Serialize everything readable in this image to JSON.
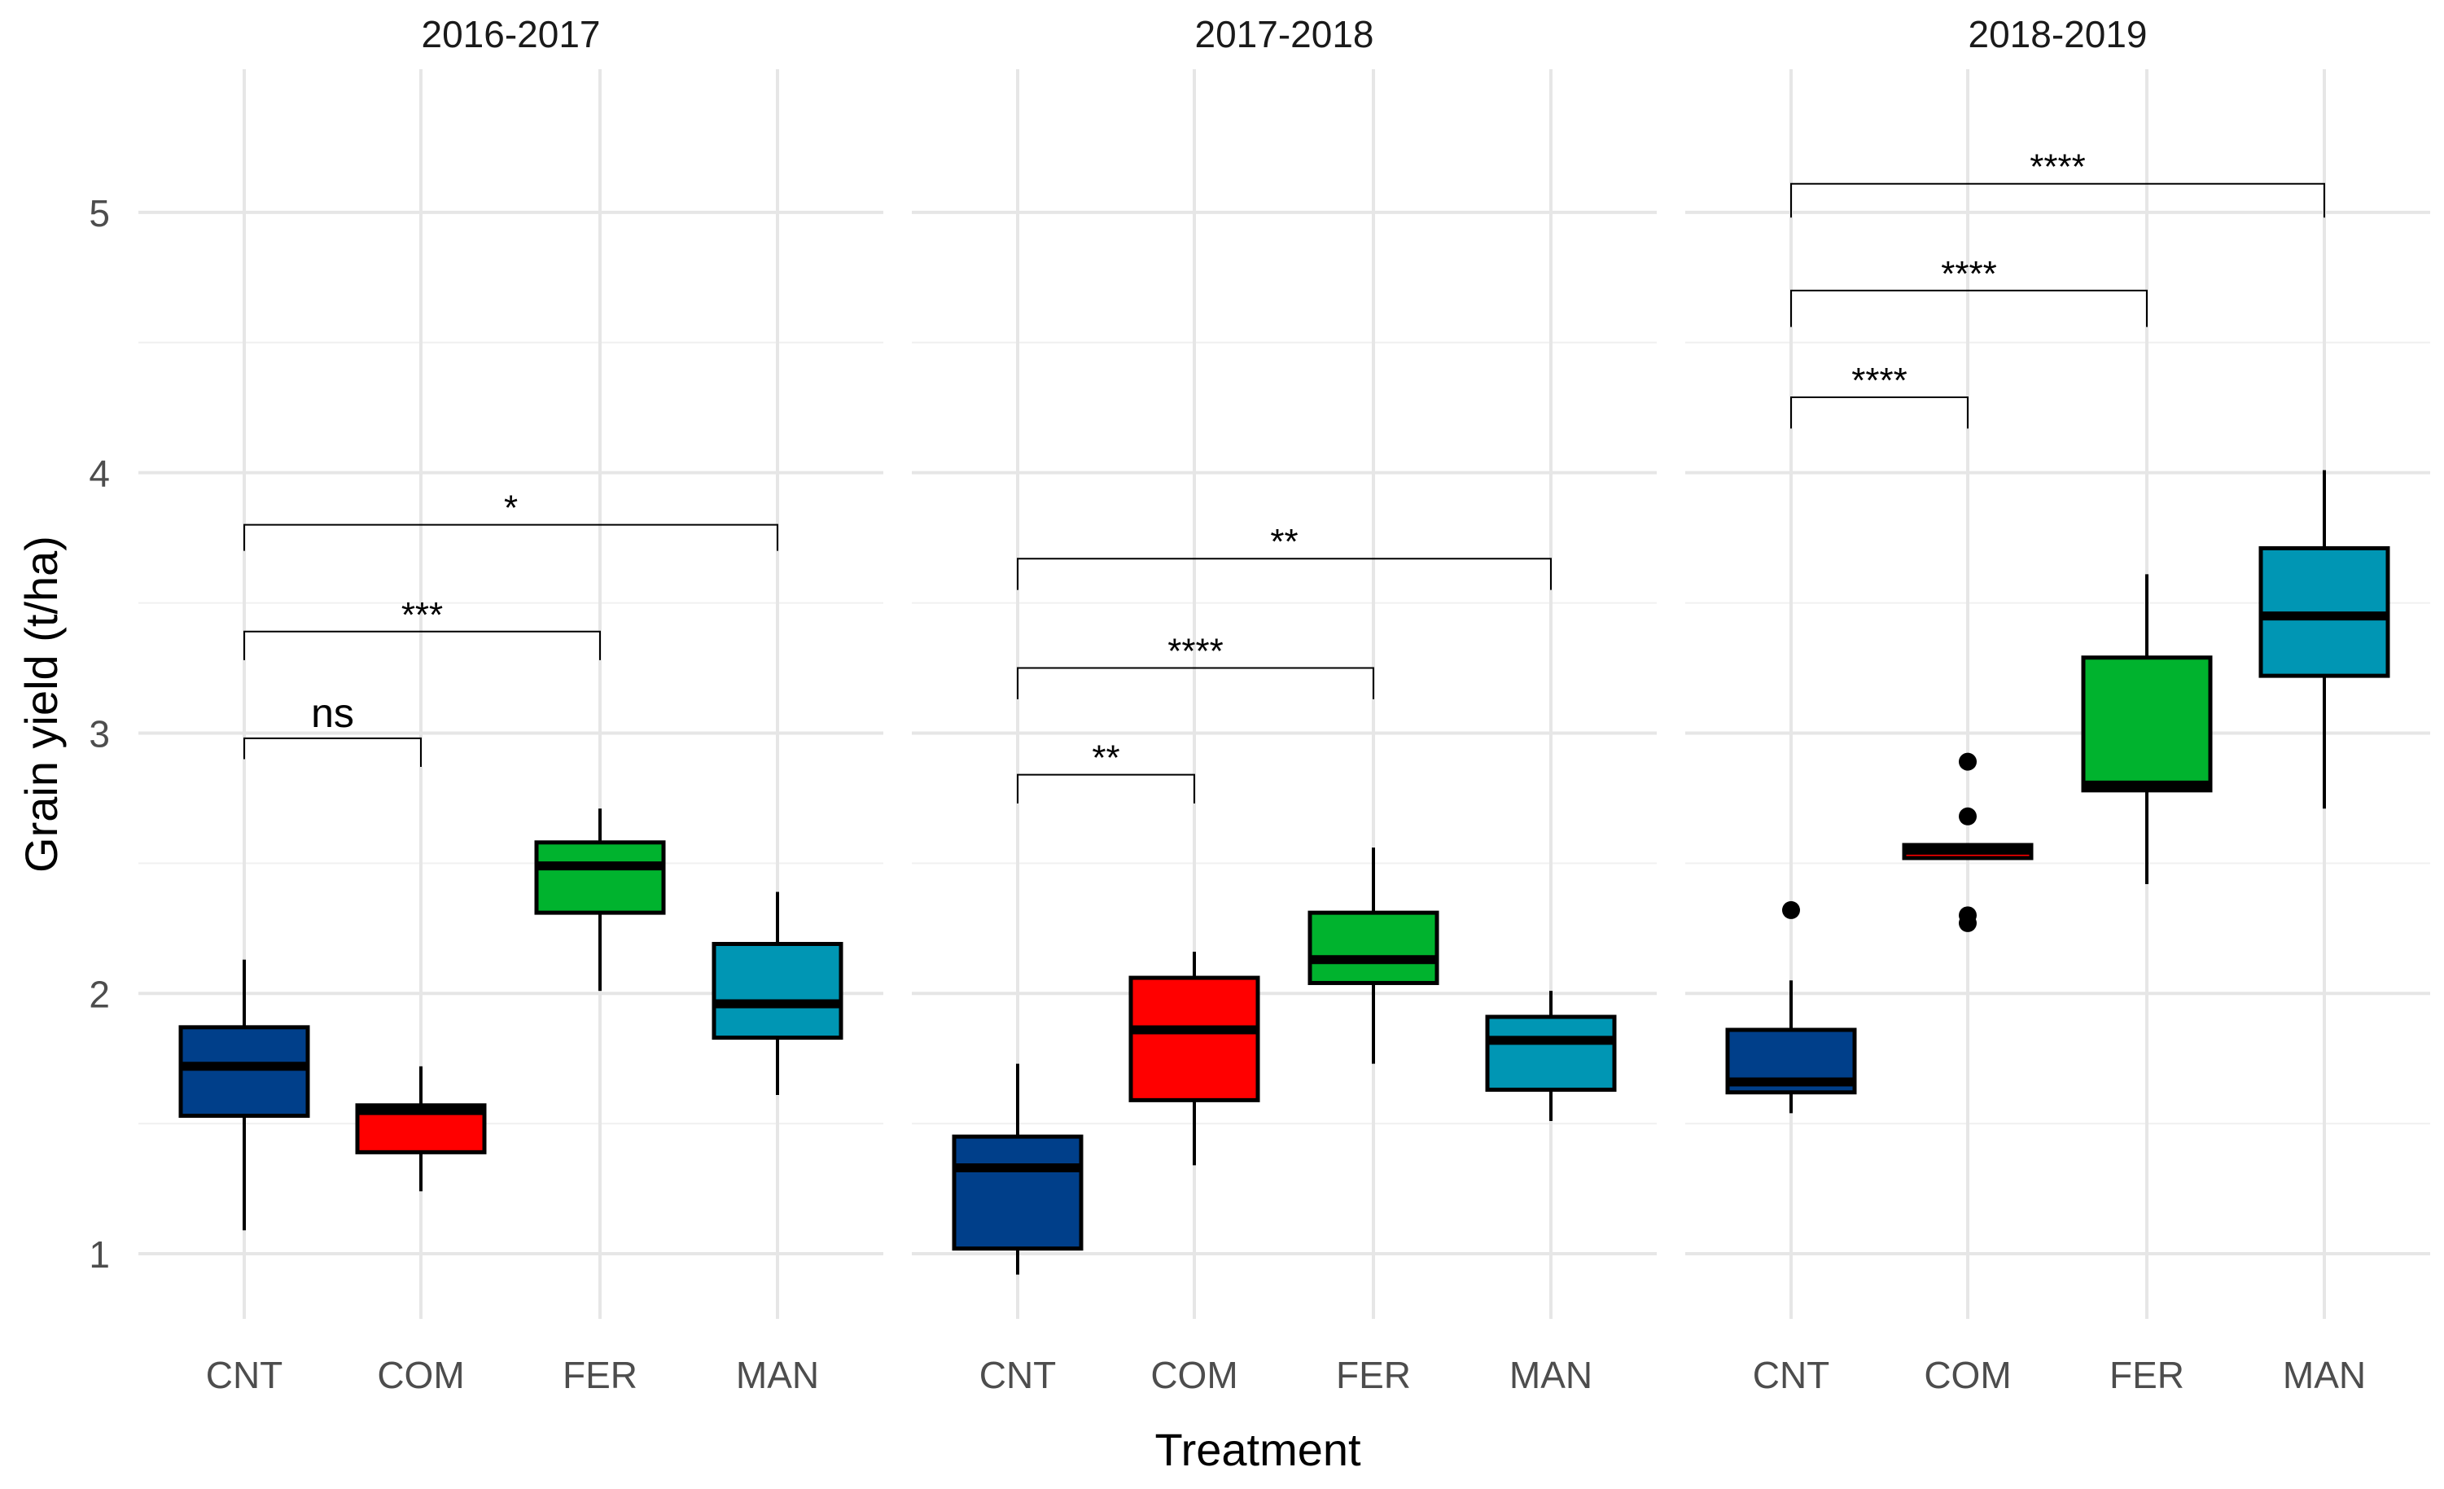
{
  "chart_data": {
    "type": "boxplot",
    "xlabel": "Treatment",
    "ylabel": "Grain yield (t/ha)",
    "ylim": [
      0.75,
      5.55
    ],
    "y_ticks": [
      1,
      2,
      3,
      4,
      5
    ],
    "categories": [
      "CNT",
      "COM",
      "FER",
      "MAN"
    ],
    "colors": {
      "CNT": "#003f8a",
      "COM": "#ff0000",
      "FER": "#00b32e",
      "MAN": "#0096b4"
    },
    "panels": [
      {
        "title": "2016-2017",
        "boxes": [
          {
            "category": "CNT",
            "min": 1.09,
            "q1": 1.53,
            "median": 1.72,
            "q3": 1.87,
            "max": 2.13,
            "outliers": []
          },
          {
            "category": "COM",
            "min": 1.24,
            "q1": 1.39,
            "median": 1.55,
            "q3": 1.57,
            "max": 1.72,
            "outliers": []
          },
          {
            "category": "FER",
            "min": 2.01,
            "q1": 2.31,
            "median": 2.49,
            "q3": 2.58,
            "max": 2.71,
            "outliers": []
          },
          {
            "category": "MAN",
            "min": 1.61,
            "q1": 1.83,
            "median": 1.96,
            "q3": 2.19,
            "max": 2.39,
            "outliers": []
          }
        ],
        "comparisons": [
          {
            "from": "CNT",
            "to": "COM",
            "label": "ns",
            "y": 2.98,
            "left_drop": 2.9,
            "right_drop": 2.87
          },
          {
            "from": "CNT",
            "to": "FER",
            "label": "***",
            "y": 3.39,
            "left_drop": 3.28,
            "right_drop": 3.28
          },
          {
            "from": "CNT",
            "to": "MAN",
            "label": "*",
            "y": 3.8,
            "left_drop": 3.7,
            "right_drop": 3.7
          }
        ]
      },
      {
        "title": "2017-2018",
        "boxes": [
          {
            "category": "CNT",
            "min": 0.92,
            "q1": 1.02,
            "median": 1.33,
            "q3": 1.45,
            "max": 1.73,
            "outliers": []
          },
          {
            "category": "COM",
            "min": 1.34,
            "q1": 1.59,
            "median": 1.86,
            "q3": 2.06,
            "max": 2.16,
            "outliers": []
          },
          {
            "category": "FER",
            "min": 1.73,
            "q1": 2.04,
            "median": 2.13,
            "q3": 2.31,
            "max": 2.56,
            "outliers": []
          },
          {
            "category": "MAN",
            "min": 1.51,
            "q1": 1.63,
            "median": 1.82,
            "q3": 1.91,
            "max": 2.01,
            "outliers": []
          }
        ],
        "comparisons": [
          {
            "from": "CNT",
            "to": "COM",
            "label": "**",
            "y": 2.84,
            "left_drop": 2.73,
            "right_drop": 2.73
          },
          {
            "from": "CNT",
            "to": "FER",
            "label": "****",
            "y": 3.25,
            "left_drop": 3.13,
            "right_drop": 3.13
          },
          {
            "from": "CNT",
            "to": "MAN",
            "label": "**",
            "y": 3.67,
            "left_drop": 3.55,
            "right_drop": 3.55
          }
        ]
      },
      {
        "title": "2018-2019",
        "boxes": [
          {
            "category": "CNT",
            "min": 1.54,
            "q1": 1.62,
            "median": 1.66,
            "q3": 1.86,
            "max": 2.05,
            "outliers": [
              2.32
            ]
          },
          {
            "category": "COM",
            "min": 2.52,
            "q1": 2.52,
            "median": 2.55,
            "q3": 2.57,
            "max": 2.57,
            "outliers": [
              2.89,
              2.68,
              2.3,
              2.27
            ]
          },
          {
            "category": "FER",
            "min": 2.42,
            "q1": 2.78,
            "median": 2.8,
            "q3": 3.29,
            "max": 3.61,
            "outliers": []
          },
          {
            "category": "MAN",
            "min": 2.71,
            "q1": 3.22,
            "median": 3.45,
            "q3": 3.71,
            "max": 4.01,
            "outliers": []
          }
        ],
        "comparisons": [
          {
            "from": "CNT",
            "to": "COM",
            "label": "****",
            "y": 4.29,
            "left_drop": 4.17,
            "right_drop": 4.17
          },
          {
            "from": "CNT",
            "to": "FER",
            "label": "****",
            "y": 4.7,
            "left_drop": 4.56,
            "right_drop": 4.56
          },
          {
            "from": "CNT",
            "to": "MAN",
            "label": "****",
            "y": 5.11,
            "left_drop": 4.98,
            "right_drop": 4.98
          }
        ]
      }
    ]
  }
}
